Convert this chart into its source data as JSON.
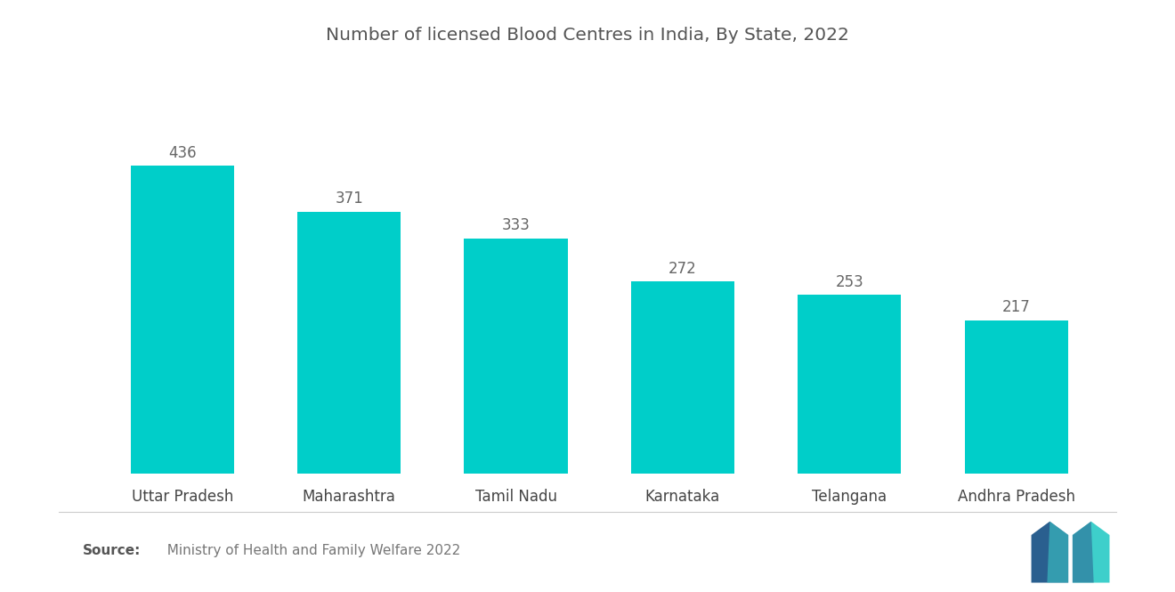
{
  "title": "Number of licensed Blood Centres in India, By State, 2022",
  "categories": [
    "Uttar Pradesh",
    "Maharashtra",
    "Tamil Nadu",
    "Karnataka",
    "Telangana",
    "Andhra Pradesh"
  ],
  "values": [
    436,
    371,
    333,
    272,
    253,
    217
  ],
  "bar_color": "#00CEC9",
  "background_color": "#ffffff",
  "title_fontsize": 14.5,
  "label_fontsize": 12,
  "value_fontsize": 12,
  "source_bold": "Source:",
  "source_normal": "  Ministry of Health and Family Welfare 2022",
  "ylim": [
    0,
    520
  ]
}
